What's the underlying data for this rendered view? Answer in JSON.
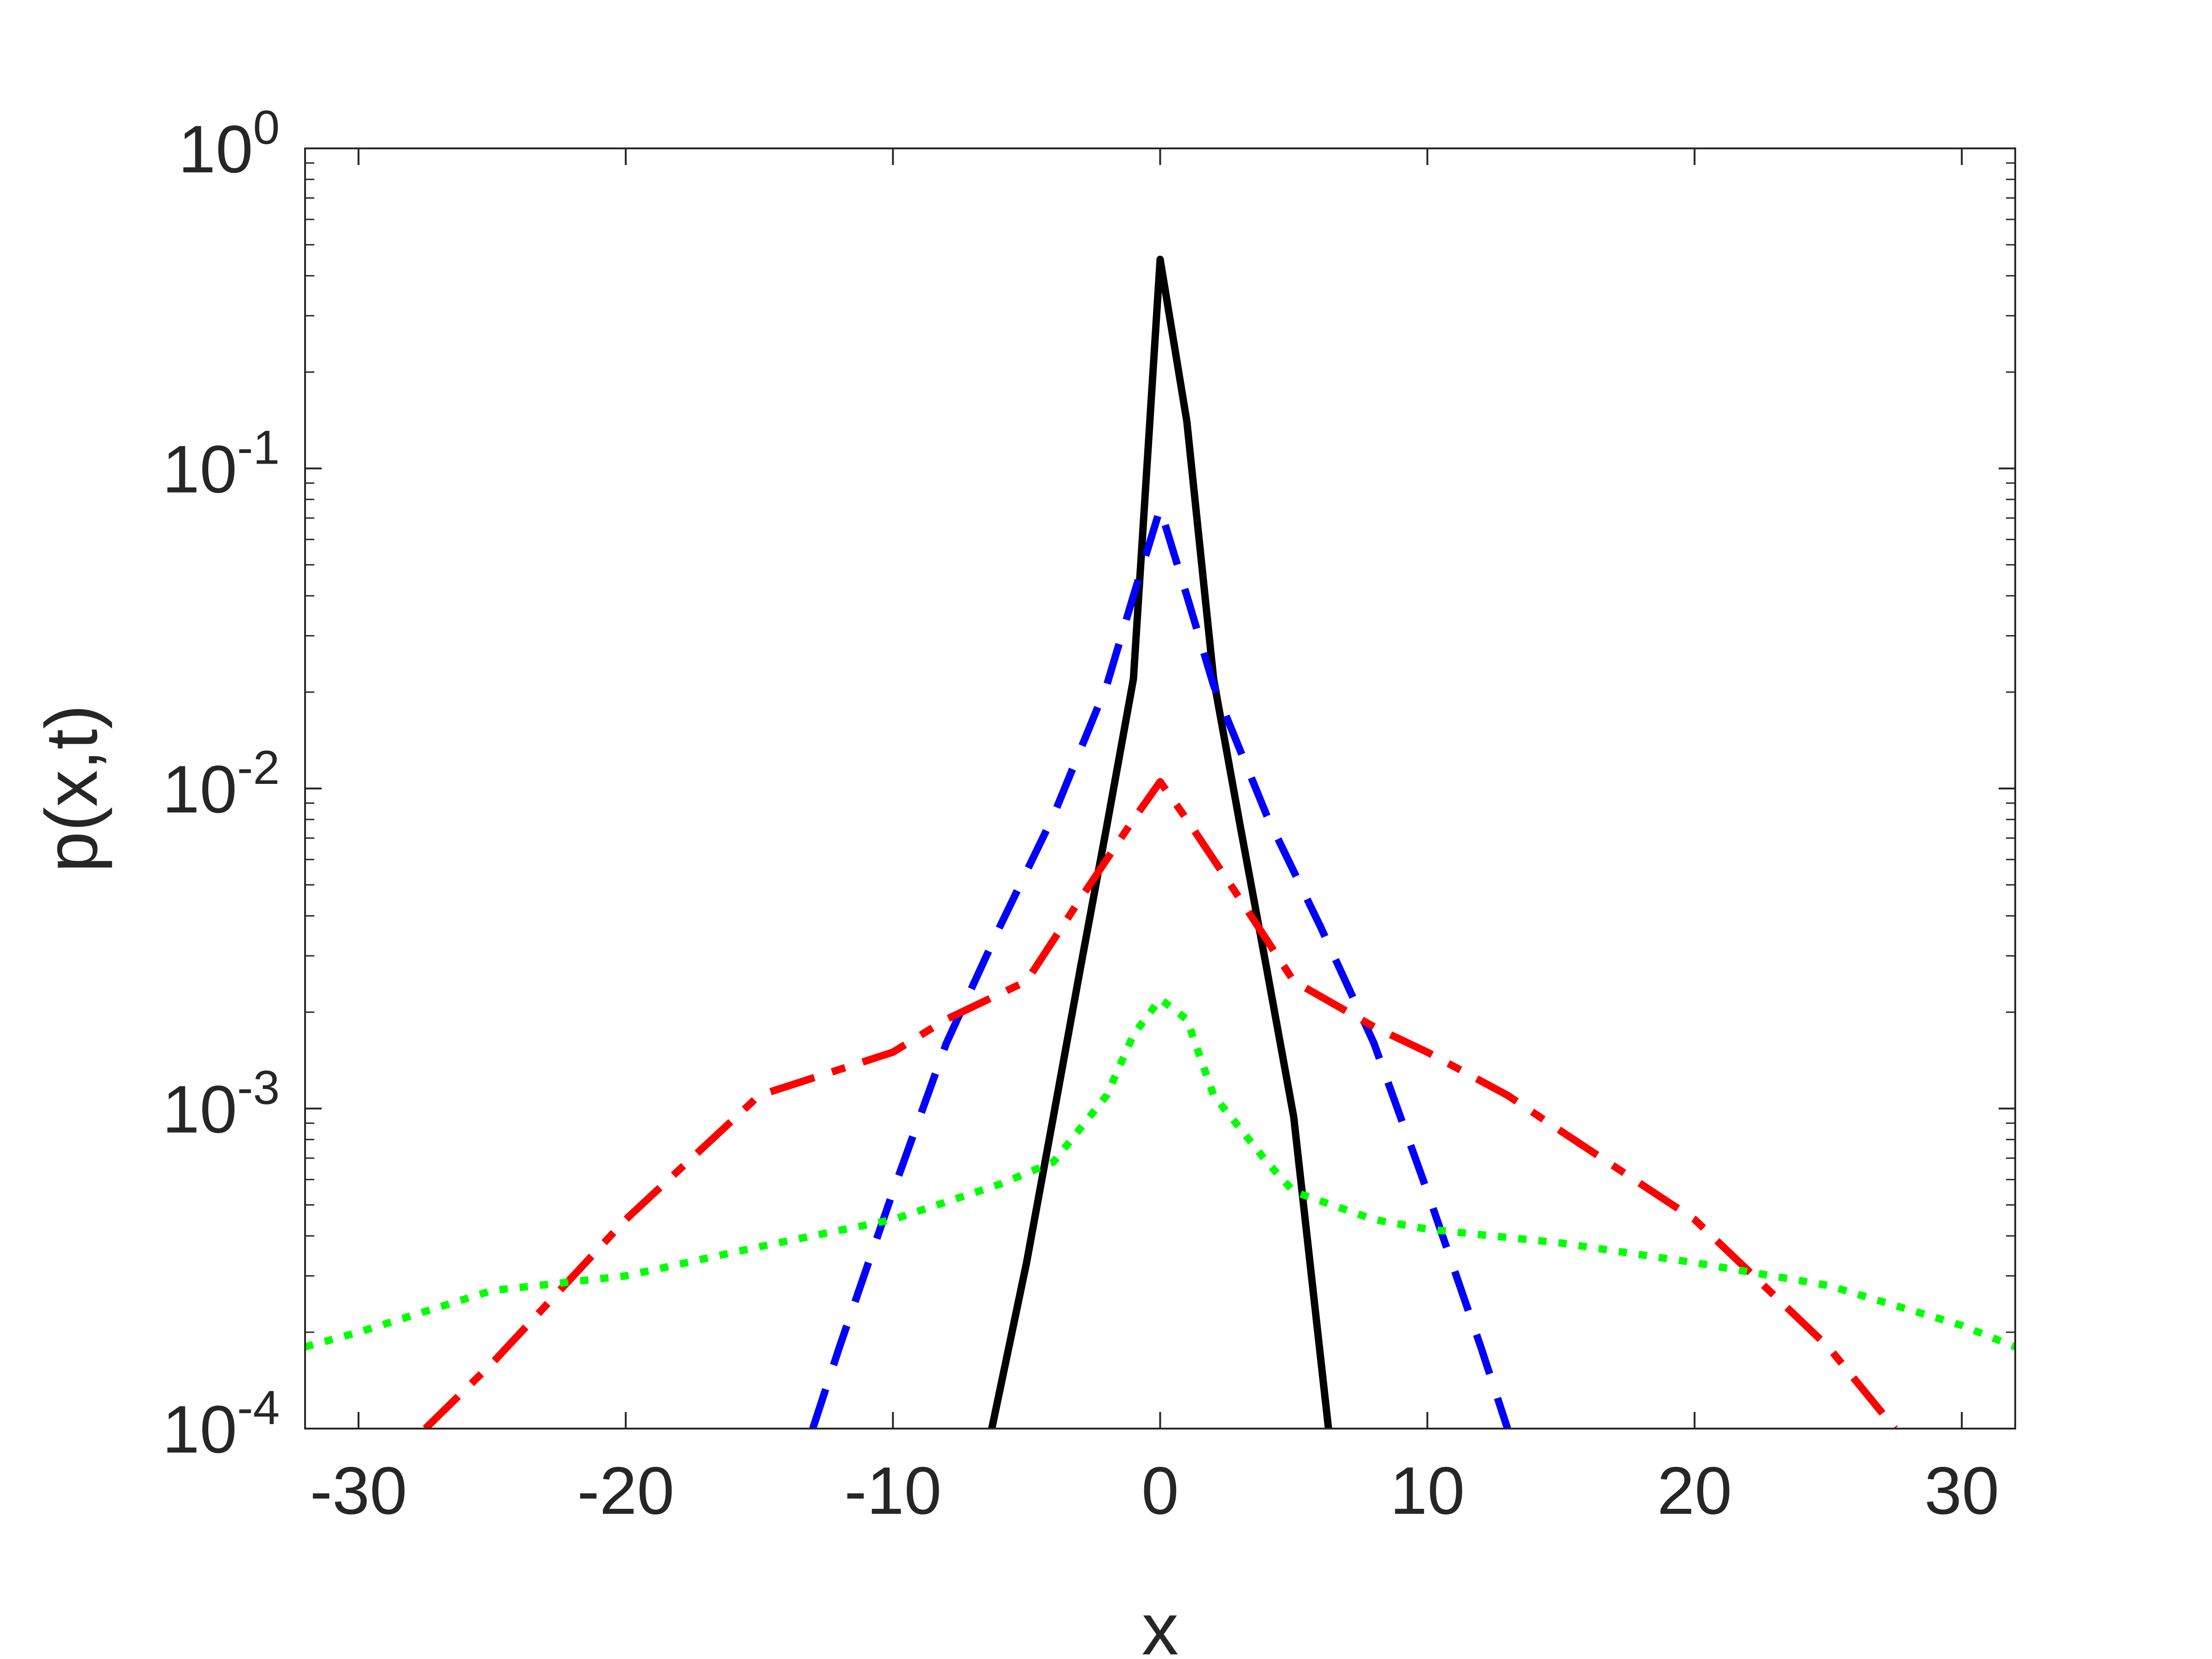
{
  "chart_data": {
    "type": "line",
    "title": "",
    "xlabel": "x",
    "ylabel": "p(x,t)",
    "xlim": [
      -32,
      32
    ],
    "ylim": [
      0.0001,
      1
    ],
    "yscale": "log",
    "grid": false,
    "box": true,
    "x_ticks": [
      {
        "value": -30,
        "label": "-30"
      },
      {
        "value": -20,
        "label": "-20"
      },
      {
        "value": -10,
        "label": "-10"
      },
      {
        "value": 0,
        "label": "0"
      },
      {
        "value": 10,
        "label": "10"
      },
      {
        "value": 20,
        "label": "20"
      },
      {
        "value": 30,
        "label": "30"
      }
    ],
    "y_ticks": [
      {
        "value": 1,
        "base": "10",
        "exponent": "0"
      },
      {
        "value": 0.1,
        "base": "10",
        "exponent": "-1"
      },
      {
        "value": 0.01,
        "base": "10",
        "exponent": "-2"
      },
      {
        "value": 0.001,
        "base": "10",
        "exponent": "-3"
      },
      {
        "value": 0.0001,
        "base": "10",
        "exponent": "-4"
      }
    ],
    "series": [
      {
        "color": "#000000",
        "style": "solid",
        "x": [
          -6.3,
          -5,
          -4,
          -3,
          -2,
          -1,
          0,
          1,
          2,
          3,
          4,
          5,
          6.3
        ],
        "y": [
          0.0001,
          0.00033,
          0.00094,
          0.0027,
          0.0076,
          0.022,
          0.45,
          0.14,
          0.022,
          0.0076,
          0.0027,
          0.00094,
          0.0001
        ]
      },
      {
        "color": "#0000ff",
        "style": "dashed",
        "x": [
          -13,
          -12,
          -10,
          -8,
          -6,
          -4,
          -2,
          -1,
          0,
          1,
          2,
          4,
          6,
          8,
          10,
          12,
          13
        ],
        "y": [
          0.0001,
          0.00018,
          0.00055,
          0.0016,
          0.0037,
          0.0082,
          0.021,
          0.04,
          0.075,
          0.04,
          0.021,
          0.0082,
          0.0037,
          0.0016,
          0.00055,
          0.00018,
          0.0001
        ]
      },
      {
        "color": "#ff0000",
        "style": "dash-dot",
        "x": [
          -27.5,
          -25,
          -20,
          -15,
          -10,
          -8,
          -5,
          -3,
          -1,
          0,
          1,
          3,
          5,
          8,
          10,
          13,
          15,
          20,
          25,
          27.5
        ],
        "y": [
          0.0001,
          0.00016,
          0.00045,
          0.0011,
          0.0015,
          0.0019,
          0.0025,
          0.0045,
          0.008,
          0.0105,
          0.008,
          0.0045,
          0.0025,
          0.0018,
          0.0015,
          0.0011,
          0.00085,
          0.00045,
          0.00018,
          0.0001
        ]
      },
      {
        "color": "#00ff00",
        "style": "dotted",
        "x": [
          -32,
          -30,
          -25,
          -20,
          -15,
          -10,
          -6,
          -4,
          -2,
          -1,
          0,
          1,
          2,
          4,
          5,
          8,
          10,
          15,
          20,
          25,
          30,
          32
        ],
        "y": [
          0.00018,
          0.0002,
          0.00027,
          0.0003,
          0.00037,
          0.00045,
          0.00058,
          0.00068,
          0.0011,
          0.0017,
          0.0022,
          0.0019,
          0.0011,
          0.00068,
          0.00055,
          0.00045,
          0.00042,
          0.00038,
          0.00033,
          0.00028,
          0.00021,
          0.00018
        ]
      }
    ]
  }
}
